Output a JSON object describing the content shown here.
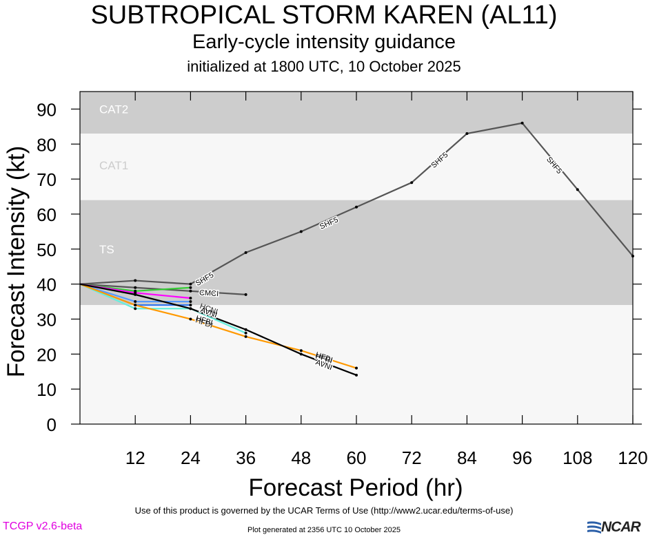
{
  "header": {
    "title": "SUBTROPICAL STORM KAREN (AL11)",
    "subtitle": "Early-cycle intensity guidance",
    "init_line": "initialized at 1800 UTC, 10 October 2025"
  },
  "footer": {
    "terms": "Use of this product is governed by the UCAR Terms of Use (http://www2.ucar.edu/terms-of-use)",
    "generated": "Plot generated at 2356 UTC   10 October 2025",
    "version": "TCGP v2.6-beta",
    "logo": "NCAR"
  },
  "chart_data": {
    "type": "line",
    "xlabel": "Forecast Period (hr)",
    "ylabel": "Forecast Intensity (kt)",
    "xlim": [
      0,
      120
    ],
    "ylim": [
      0,
      95
    ],
    "xticks": [
      12,
      24,
      36,
      48,
      60,
      72,
      84,
      96,
      108,
      120
    ],
    "yticks": [
      0,
      10,
      20,
      30,
      40,
      50,
      60,
      70,
      80,
      90
    ],
    "bands": [
      {
        "label": "TS",
        "from": 34,
        "to": 64,
        "color": "#cdcdcd"
      },
      {
        "label": "CAT1",
        "from": 64,
        "to": 83,
        "color": "#f7f7f7"
      },
      {
        "label": "CAT2",
        "from": 83,
        "to": 95,
        "color": "#cdcdcd"
      },
      {
        "label": "",
        "from": 0,
        "to": 34,
        "color": "#f7f7f7"
      }
    ],
    "series": [
      {
        "name": "SHF5",
        "color": "#555555",
        "x": [
          0,
          12,
          24,
          36,
          48,
          60,
          72,
          84,
          96,
          108,
          120
        ],
        "y": [
          40,
          41,
          40,
          49,
          55,
          62,
          69,
          83,
          86,
          67,
          48
        ],
        "labels": [
          [
            27,
            41.5
          ],
          [
            54,
            57.5
          ],
          [
            78,
            75.5
          ],
          [
            103,
            74
          ]
        ]
      },
      {
        "name": "CMCI",
        "color": "#555555",
        "x": [
          0,
          12,
          24,
          36
        ],
        "y": [
          40,
          39,
          38,
          37
        ],
        "labels": [
          [
            28,
            37.5
          ]
        ]
      },
      {
        "name": "",
        "color": "#33cc33",
        "x": [
          0,
          12,
          24
        ],
        "y": [
          40,
          38,
          39
        ],
        "labels": []
      },
      {
        "name": "",
        "color": "#ff00ff",
        "x": [
          0,
          12,
          24
        ],
        "y": [
          40,
          37.5,
          36
        ],
        "labels": []
      },
      {
        "name": "",
        "color": "#5599ff",
        "x": [
          0,
          12,
          24
        ],
        "y": [
          40,
          35,
          35
        ],
        "labels": []
      },
      {
        "name": "",
        "color": "#3377ee",
        "x": [
          0,
          12,
          24
        ],
        "y": [
          40,
          34,
          34
        ],
        "labels": []
      },
      {
        "name": "",
        "color": "#66eedd",
        "x": [
          0,
          12,
          24,
          36
        ],
        "y": [
          40,
          33,
          33,
          26
        ],
        "labels": []
      },
      {
        "name": "HFBI",
        "color": "#ff9900",
        "x": [
          0,
          12,
          24,
          36,
          48,
          60
        ],
        "y": [
          40,
          34,
          30,
          25,
          21,
          16
        ],
        "labels": [
          [
            27,
            29.7
          ],
          [
            53,
            18.8
          ]
        ]
      },
      {
        "name": "AVNI",
        "color": "#000000",
        "x": [
          0,
          12,
          24,
          36,
          48,
          60
        ],
        "y": [
          40,
          37,
          33,
          27,
          20,
          14
        ],
        "labels": [
          [
            28,
            32
          ],
          [
            53,
            17
          ]
        ]
      }
    ],
    "overlap_labels": [
      {
        "text": "HFDI",
        "x": 27,
        "y": 29,
        "color": "#000000"
      },
      {
        "text": "HCNI",
        "x": 28,
        "y": 33,
        "color": "#000000"
      },
      {
        "text": "HFDI",
        "x": 53,
        "y": 19.2,
        "color": "#000000"
      }
    ]
  }
}
